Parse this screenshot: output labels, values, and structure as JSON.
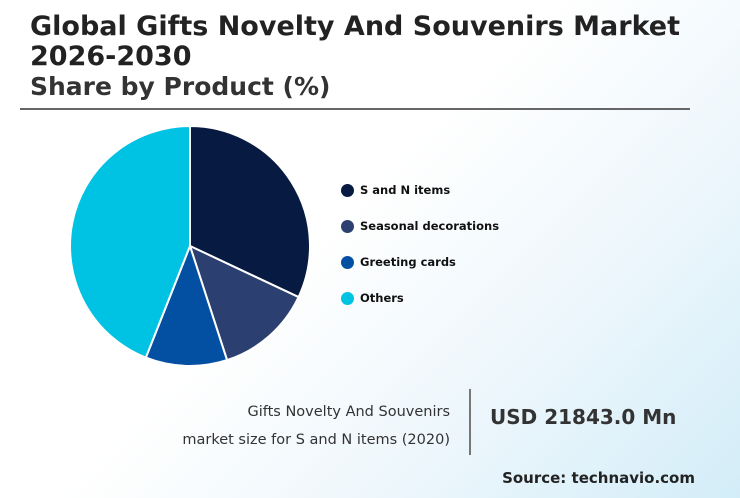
{
  "header": {
    "title": "Global Gifts Novelty And Souvenirs Market 2026-2030",
    "subtitle": "Share by Product (%)"
  },
  "chart_data": {
    "type": "pie",
    "start_angle_deg": 90,
    "direction": "clockwise",
    "slices": [
      {
        "label": "S and N items",
        "value": 32,
        "color": "#071a42"
      },
      {
        "label": "Seasonal decorations",
        "value": 13,
        "color": "#2b3f70"
      },
      {
        "label": "Greeting cards",
        "value": 11,
        "color": "#0350a3"
      },
      {
        "label": "Others",
        "value": 44,
        "color": "#00c2e3"
      }
    ],
    "legend_position": "right"
  },
  "footer": {
    "market_label_line1": "Gifts Novelty And Souvenirs",
    "market_label_line2": "market size for S and N items (2020)",
    "market_value": "USD 21843.0 Mn",
    "source": "Source: technavio.com"
  }
}
